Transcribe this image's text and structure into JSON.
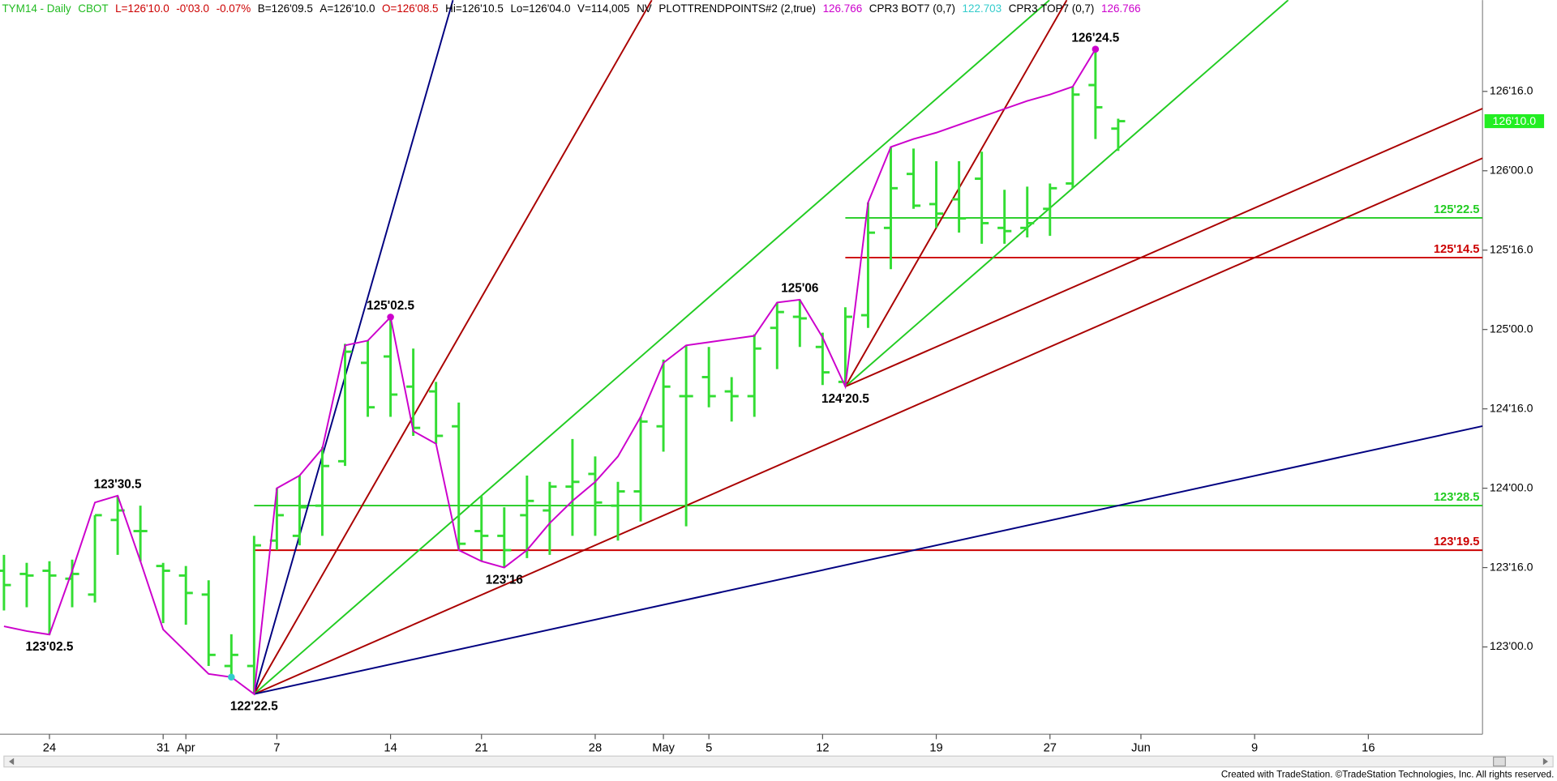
{
  "chart_data": {
    "type": "ohlc",
    "header": [
      {
        "text": "TYM14 - Daily",
        "color": "#22bb22"
      },
      {
        "text": "CBOT",
        "color": "#22bb22"
      },
      {
        "text": "L=126'10.0",
        "color": "#cc0000"
      },
      {
        "text": "-0'03.0",
        "color": "#cc0000"
      },
      {
        "text": "-0.07%",
        "color": "#cc0000"
      },
      {
        "text": "B=126'09.5",
        "color": "#000000"
      },
      {
        "text": "A=126'10.0",
        "color": "#000000"
      },
      {
        "text": "O=126'08.5",
        "color": "#cc0000"
      },
      {
        "text": "Hi=126'10.5",
        "color": "#000000"
      },
      {
        "text": "Lo=126'04.0",
        "color": "#000000"
      },
      {
        "text": "V=114,005",
        "color": "#000000"
      },
      {
        "text": "NV",
        "color": "#000000"
      },
      {
        "text": "PLOTTRENDPOINTS#2 (2,true)",
        "color": "#000000"
      },
      {
        "text": "126.766",
        "color": "#cc00cc"
      },
      {
        "text": "CPR3 BOT7 (0,7)",
        "color": "#000000"
      },
      {
        "text": "122.703",
        "color": "#33cccc"
      },
      {
        "text": "CPR3 TOP7 (0,7)",
        "color": "#000000"
      },
      {
        "text": "126.766",
        "color": "#cc00cc"
      }
    ],
    "credit": "Created with TradeStation. ©TradeStation Technologies, Inc. All rights reserved.",
    "categories": [
      null,
      null,
      "24",
      null,
      null,
      null,
      null,
      "31",
      "Apr",
      null,
      null,
      null,
      "7",
      null,
      null,
      null,
      null,
      "14",
      null,
      null,
      null,
      "21",
      null,
      null,
      null,
      null,
      "28",
      null,
      null,
      "May",
      null,
      "5",
      null,
      null,
      null,
      null,
      "12",
      null,
      null,
      null,
      null,
      "19",
      null,
      null,
      null,
      null,
      "27",
      null,
      null,
      null,
      "Jun",
      null,
      null,
      null,
      null,
      "9",
      null,
      null,
      null,
      null,
      "16",
      null,
      null,
      null,
      null
    ],
    "color": "#33dd33",
    "open": [
      123.48,
      123.46,
      123.48,
      123.43,
      123.33,
      123.8,
      123.73,
      123.51,
      123.45,
      123.33,
      122.88,
      122.88,
      123.67,
      123.7,
      123.89,
      124.17,
      124.79,
      124.83,
      124.64,
      124.61,
      124.39,
      123.73,
      123.7,
      123.83,
      123.86,
      124.01,
      124.09,
      123.89,
      123.98,
      124.39,
      124.58,
      124.7,
      124.61,
      124.58,
      125.01,
      125.08,
      124.89,
      124.67,
      125.09,
      125.64,
      125.98,
      125.79,
      125.82,
      125.95,
      125.64,
      125.64,
      125.76,
      125.92,
      126.54,
      126.2656,
      null,
      null,
      null,
      null,
      null,
      null,
      null,
      null,
      null,
      null,
      null,
      null,
      null,
      null,
      null
    ],
    "high": [
      123.58,
      123.53,
      123.54,
      123.55,
      123.83,
      123.953,
      123.89,
      123.53,
      123.51,
      123.42,
      123.08,
      123.7,
      124.0,
      124.08,
      124.26,
      124.91,
      124.93,
      125.078,
      124.88,
      124.67,
      124.54,
      123.95,
      123.88,
      124.08,
      124.04,
      124.31,
      124.2,
      124.04,
      124.45,
      124.81,
      124.9,
      124.89,
      124.7,
      124.97,
      125.17,
      125.1875,
      124.98,
      125.14,
      125.8,
      126.15,
      126.14,
      126.06,
      126.06,
      126.12,
      125.88,
      125.9,
      125.92,
      126.53,
      126.766,
      126.3281,
      null,
      null,
      null,
      null,
      null,
      null,
      null,
      null,
      null,
      null,
      null,
      null,
      null,
      null,
      null
    ],
    "low": [
      123.23,
      123.25,
      123.078,
      123.25,
      123.28,
      123.58,
      123.54,
      123.15,
      123.14,
      122.88,
      122.8,
      122.703,
      123.61,
      123.64,
      123.7,
      124.14,
      124.45,
      124.45,
      124.33,
      124.28,
      123.61,
      123.54,
      123.5,
      123.56,
      123.58,
      123.7,
      123.7,
      123.67,
      123.79,
      124.23,
      123.76,
      124.51,
      124.42,
      124.45,
      124.75,
      124.89,
      124.65,
      124.6406,
      125.01,
      125.38,
      125.76,
      125.64,
      125.61,
      125.54,
      125.54,
      125.58,
      125.59,
      125.89,
      126.2,
      126.125,
      null,
      null,
      null,
      null,
      null,
      null,
      null,
      null,
      null,
      null,
      null,
      null,
      null,
      null,
      null
    ],
    "close": [
      123.39,
      123.45,
      123.45,
      123.46,
      123.83,
      123.86,
      123.73,
      123.48,
      123.34,
      122.95,
      122.95,
      123.64,
      123.83,
      123.88,
      124.14,
      124.86,
      124.51,
      124.59,
      124.38,
      124.33,
      123.65,
      123.7,
      123.61,
      123.92,
      124.01,
      124.04,
      123.91,
      123.98,
      124.42,
      124.64,
      124.58,
      124.58,
      124.58,
      124.88,
      125.11,
      125.07,
      124.73,
      125.08,
      125.61,
      125.89,
      125.78,
      125.73,
      125.7,
      125.67,
      125.62,
      125.67,
      125.89,
      126.48,
      126.4,
      126.3125,
      null,
      null,
      null,
      null,
      null,
      null,
      null,
      null,
      null,
      null,
      null,
      null,
      null,
      null,
      null
    ],
    "overlay": {
      "color": "#cc00cc",
      "values": [
        123.13,
        123.1,
        123.078,
        123.48,
        123.91,
        123.953,
        123.54,
        123.11,
        122.97,
        122.83,
        122.81,
        122.703,
        124.0,
        124.08,
        124.25,
        124.9,
        124.93,
        125.078,
        124.36,
        124.28,
        123.61,
        123.54,
        123.5,
        123.61,
        123.78,
        123.92,
        124.04,
        124.2,
        124.45,
        124.79,
        124.9,
        124.92,
        124.94,
        124.96,
        125.17,
        125.1875,
        124.95,
        124.6406,
        125.8,
        126.15,
        126.2,
        126.24,
        126.29,
        126.34,
        126.39,
        126.44,
        126.48,
        126.53,
        126.766,
        null,
        null,
        null,
        null,
        null,
        null,
        null,
        null,
        null,
        null,
        null,
        null,
        null,
        null,
        null,
        null
      ]
    },
    "fans": [
      {
        "x": 11,
        "y": 122.703,
        "lines": [
          {
            "slope": 0.5,
            "color": "#000080"
          },
          {
            "slope": 0.25,
            "color": "#aa0000"
          },
          {
            "slope": 0.125,
            "color": "#22cc22"
          },
          {
            "slope": 0.0625,
            "color": "#aa0000"
          },
          {
            "slope": 0.03125,
            "color": "#000080"
          }
        ]
      },
      {
        "x": 37,
        "y": 124.6406,
        "lines": [
          {
            "slope": 0.25,
            "color": "#aa0000"
          },
          {
            "slope": 0.125,
            "color": "#22cc22"
          },
          {
            "slope": 0.0625,
            "color": "#aa0000"
          }
        ]
      }
    ],
    "levels": [
      {
        "value": 125.7031,
        "label": "125'22.5",
        "color": "#22cc22",
        "x": 37
      },
      {
        "value": 125.4531,
        "label": "125'14.5",
        "color": "#cc0000",
        "x": 37
      },
      {
        "value": 123.8906,
        "label": "123'28.5",
        "color": "#22cc22",
        "x": 11
      },
      {
        "value": 123.6094,
        "label": "123'19.5",
        "color": "#cc0000",
        "x": 11
      }
    ],
    "annotations": [
      {
        "text": "123'30.5",
        "x": 5,
        "y": 123.953,
        "pos": "above"
      },
      {
        "text": "123'02.5",
        "x": 2,
        "y": 123.078,
        "pos": "below"
      },
      {
        "text": "122'22.5",
        "x": 11,
        "y": 122.703,
        "pos": "below"
      },
      {
        "text": "125'02.5",
        "x": 17,
        "y": 125.078,
        "pos": "above"
      },
      {
        "text": "123'16",
        "x": 22,
        "y": 123.5,
        "pos": "below"
      },
      {
        "text": "125'06",
        "x": 35,
        "y": 125.1875,
        "pos": "above"
      },
      {
        "text": "124'20.5",
        "x": 37,
        "y": 124.6406,
        "pos": "below"
      },
      {
        "text": "126'24.5",
        "x": 48,
        "y": 126.766,
        "pos": "above"
      }
    ],
    "markers": [
      {
        "x": 17,
        "y": 125.078,
        "color": "#cc00cc"
      },
      {
        "x": 48,
        "y": 126.766,
        "color": "#cc00cc"
      },
      {
        "x": 10,
        "y": 122.81,
        "color": "#33cccc"
      }
    ],
    "last": {
      "value": 126.3125,
      "label": "126'10.0"
    },
    "ylim": [
      122.45,
      127.075
    ],
    "yticks": [
      {
        "value": 123,
        "label": "123'00.0"
      },
      {
        "value": 123.5,
        "label": "123'16.0"
      },
      {
        "value": 124,
        "label": "124'00.0"
      },
      {
        "value": 124.5,
        "label": "124'16.0"
      },
      {
        "value": 125,
        "label": "125'00.0"
      },
      {
        "value": 125.5,
        "label": "125'16.0"
      },
      {
        "value": 126,
        "label": "126'00.0"
      },
      {
        "value": 126.5,
        "label": "126'16.0"
      }
    ],
    "grid": false
  }
}
